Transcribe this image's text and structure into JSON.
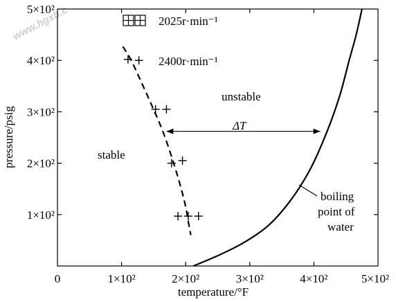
{
  "chart_data": {
    "type": "line",
    "xlabel": "temperature/°F",
    "ylabel": "pressure/psig",
    "xlim": [
      0,
      500
    ],
    "ylim": [
      0,
      500
    ],
    "x_ticks": [
      {
        "value": 0,
        "label": "0"
      },
      {
        "value": 100,
        "label": "1×10²"
      },
      {
        "value": 200,
        "label": "2×10²"
      },
      {
        "value": 300,
        "label": "3×10²"
      },
      {
        "value": 400,
        "label": "4×10²"
      },
      {
        "value": 500,
        "label": "5×10²"
      }
    ],
    "y_ticks": [
      {
        "value": 100,
        "label": "1×10²"
      },
      {
        "value": 200,
        "label": "2×10²"
      },
      {
        "value": 300,
        "label": "3×10²"
      },
      {
        "value": 400,
        "label": "4×10²"
      },
      {
        "value": 500,
        "label": "5×10²"
      }
    ],
    "series": [
      {
        "style": "solid",
        "x": [
          212,
          250,
          290,
          330,
          365,
          395,
          420,
          440,
          455,
          466,
          475
        ],
        "y": [
          0,
          20,
          45,
          80,
          130,
          190,
          260,
          330,
          400,
          450,
          500
        ]
      },
      {
        "style": "dashed",
        "x": [
          102,
          115,
          130,
          148,
          165,
          180,
          192,
          200,
          205,
          208
        ],
        "y": [
          427,
          400,
          360,
          310,
          260,
          205,
          155,
          115,
          80,
          60
        ]
      }
    ],
    "markers": [
      {
        "x": 110,
        "y": 402
      },
      {
        "x": 127,
        "y": 400
      },
      {
        "x": 153,
        "y": 305
      },
      {
        "x": 170,
        "y": 305
      },
      {
        "x": 178,
        "y": 200
      },
      {
        "x": 195,
        "y": 205
      },
      {
        "x": 188,
        "y": 97
      },
      {
        "x": 204,
        "y": 97
      },
      {
        "x": 220,
        "y": 97
      }
    ],
    "legend": {
      "placement": "top-left",
      "entries": [
        "2025r·min⁻¹",
        "2400r·min⁻¹"
      ]
    },
    "annotations": {
      "unstable": "unstable",
      "stable": "stable",
      "delta": "ΔT",
      "boiling": [
        "boiling",
        "point of",
        "water"
      ]
    },
    "delta_t": {
      "x_from": 170,
      "x_to": 410,
      "y": 262
    },
    "grid": false
  },
  "watermark": "www.hgxb.c"
}
